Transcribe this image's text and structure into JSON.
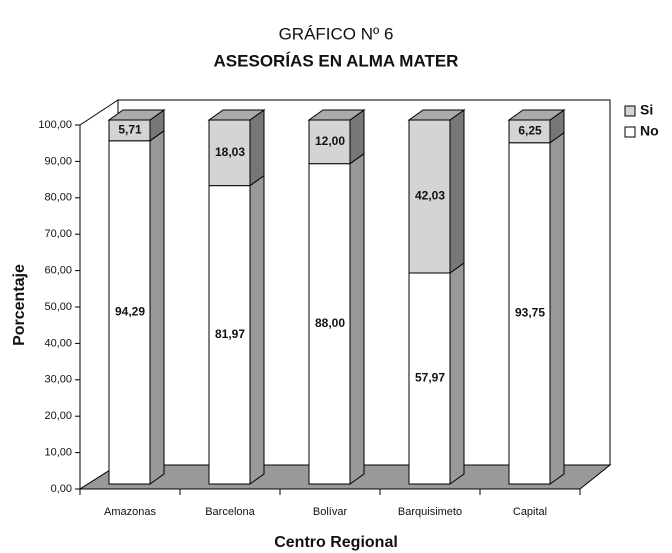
{
  "chart_data": {
    "type": "bar3d_stacked",
    "title": "GRÁFICO Nº 6",
    "subtitle": "ASESORÍAS EN ALMA MATER",
    "x_label": "Centro Regional",
    "y_label": "Porcentaje",
    "categories": [
      "Amazonas",
      "Barcelona",
      "Bolívar",
      "Barquisimeto",
      "Capital"
    ],
    "series": [
      {
        "name": "No",
        "color": "#ffffff",
        "values": [
          94.29,
          81.97,
          88.0,
          57.97,
          93.75
        ],
        "value_labels": [
          "94,29",
          "81,97",
          "88,00",
          "57,97",
          "93,75"
        ]
      },
      {
        "name": "Si",
        "color": "#d4d4d4",
        "values": [
          5.71,
          18.03,
          12.0,
          42.03,
          6.25
        ],
        "value_labels": [
          "5,71",
          "18,03",
          "12,00",
          "42,03",
          "6,25"
        ]
      }
    ],
    "ylim": [
      0,
      100
    ],
    "yticks": [
      {
        "value": 0,
        "label": "0,00"
      },
      {
        "value": 10,
        "label": "10,00"
      },
      {
        "value": 20,
        "label": "20,00"
      },
      {
        "value": 30,
        "label": "30,00"
      },
      {
        "value": 40,
        "label": "40,00"
      },
      {
        "value": 50,
        "label": "50,00"
      },
      {
        "value": 60,
        "label": "60,00"
      },
      {
        "value": 70,
        "label": "70,00"
      },
      {
        "value": 80,
        "label": "80,00"
      },
      {
        "value": 90,
        "label": "90,00"
      },
      {
        "value": 100,
        "label": "100,00"
      }
    ],
    "legend": "top-right"
  }
}
